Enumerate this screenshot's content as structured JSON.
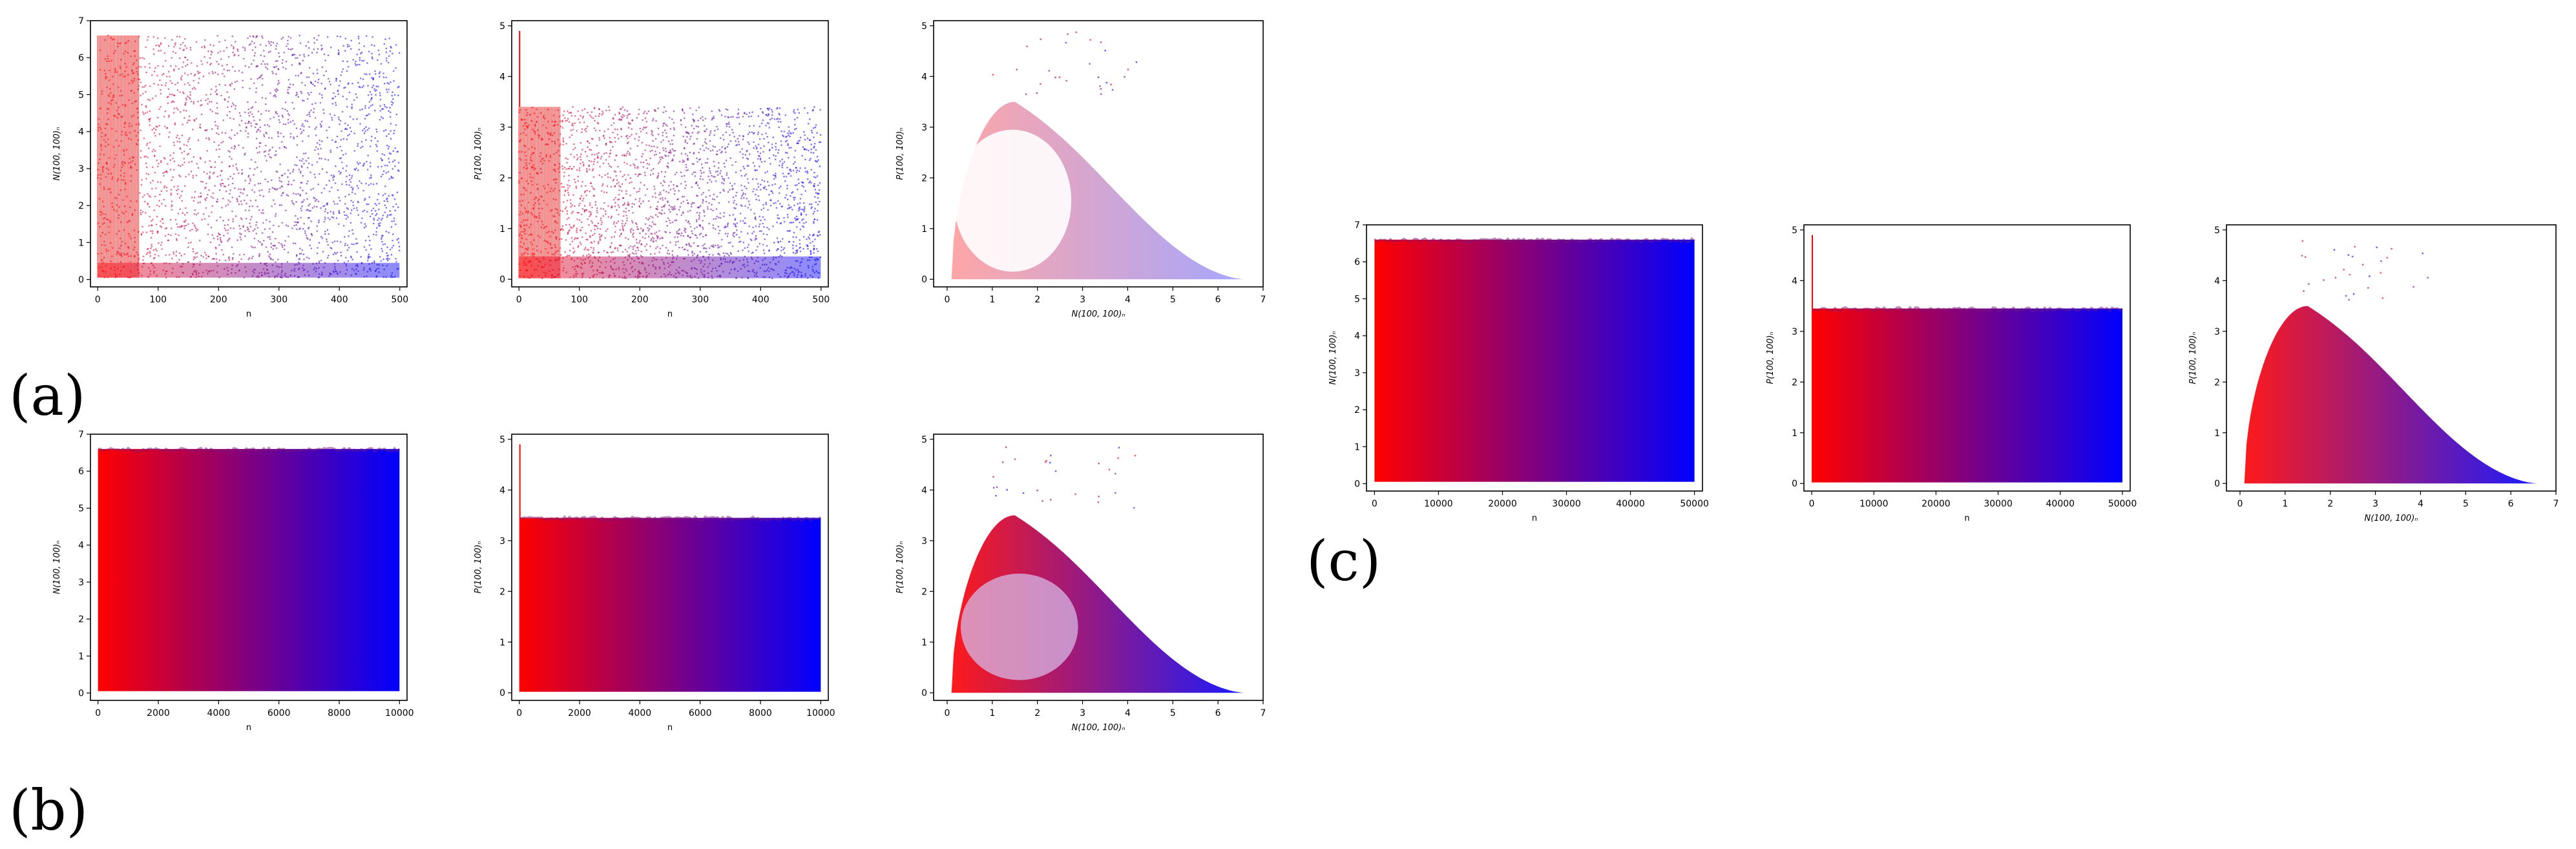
{
  "panel_labels": [
    "(a)",
    "(b)",
    "(c)"
  ],
  "colors": {
    "start": "#ff0000",
    "end": "#0000ff",
    "axis": "#000000"
  },
  "chart_data": [
    {
      "id": "a1",
      "type": "scatter",
      "panel": "(a)",
      "xlabel": "n",
      "ylabel": "N(100, 100)ₙ",
      "xlim": [
        -12,
        512
      ],
      "ylim": [
        -0.2,
        7.0
      ],
      "xticks": [
        0,
        100,
        200,
        300,
        400,
        500
      ],
      "yticks": [
        0,
        1,
        2,
        3,
        4,
        5,
        6,
        7
      ],
      "n_points": 500,
      "y_range": [
        0.05,
        6.6
      ],
      "color_gradient": [
        "#ff0000",
        "#0000ff"
      ]
    },
    {
      "id": "a2",
      "type": "scatter",
      "panel": "(a)",
      "xlabel": "n",
      "ylabel": "P(100, 100)ₙ",
      "xlim": [
        -12,
        512
      ],
      "ylim": [
        -0.15,
        5.1
      ],
      "xticks": [
        0,
        100,
        200,
        300,
        400,
        500
      ],
      "yticks": [
        0,
        1,
        2,
        3,
        4,
        5
      ],
      "n_points": 500,
      "y_range": [
        0.02,
        3.4
      ],
      "spike_at_start": 4.9,
      "color_gradient": [
        "#ff0000",
        "#0000ff"
      ]
    },
    {
      "id": "a3",
      "type": "scatter",
      "panel": "(a)",
      "xlabel": "N(100, 100)ₙ",
      "ylabel": "P(100, 100)ₙ",
      "xlim": [
        -0.3,
        7.0
      ],
      "ylim": [
        -0.15,
        5.1
      ],
      "xticks": [
        0,
        1,
        2,
        3,
        4,
        5,
        6,
        7
      ],
      "yticks": [
        0,
        1,
        2,
        3,
        4,
        5
      ],
      "n_points": 500,
      "shape": "cusp loop, peak P≈3.4 at N≈1.3, tail to N≈6.6",
      "color_gradient": [
        "#ff0000",
        "#0000ff"
      ]
    },
    {
      "id": "b1",
      "type": "scatter",
      "panel": "(b)",
      "xlabel": "n",
      "ylabel": "N(100, 100)ₙ",
      "xlim": [
        -250,
        10250
      ],
      "ylim": [
        -0.2,
        7.0
      ],
      "xticks": [
        0,
        2000,
        4000,
        6000,
        8000,
        10000
      ],
      "yticks": [
        0,
        1,
        2,
        3,
        4,
        5,
        6,
        7
      ],
      "n_points": 10000,
      "y_range": [
        0.05,
        6.6
      ],
      "color_gradient": [
        "#ff0000",
        "#0000ff"
      ]
    },
    {
      "id": "b2",
      "type": "scatter",
      "panel": "(b)",
      "xlabel": "n",
      "ylabel": "P(100, 100)ₙ",
      "xlim": [
        -250,
        10250
      ],
      "ylim": [
        -0.15,
        5.1
      ],
      "xticks": [
        0,
        2000,
        4000,
        6000,
        8000,
        10000
      ],
      "yticks": [
        0,
        1,
        2,
        3,
        4,
        5
      ],
      "n_points": 10000,
      "y_range": [
        0.02,
        3.45
      ],
      "spike_at_start": 4.9,
      "color_gradient": [
        "#ff0000",
        "#0000ff"
      ]
    },
    {
      "id": "b3",
      "type": "scatter",
      "panel": "(b)",
      "xlabel": "N(100, 100)ₙ",
      "ylabel": "P(100, 100)ₙ",
      "xlim": [
        -0.3,
        7.0
      ],
      "ylim": [
        -0.15,
        5.1
      ],
      "xticks": [
        0,
        1,
        2,
        3,
        4,
        5,
        6,
        7
      ],
      "yticks": [
        0,
        1,
        2,
        3,
        4,
        5
      ],
      "n_points": 10000,
      "shape": "filled cusp region, peak P≈3.5 at N≈1.5, tail to N≈6.6",
      "color_gradient": [
        "#ff0000",
        "#0000ff"
      ]
    },
    {
      "id": "c1",
      "type": "scatter",
      "panel": "(c)",
      "xlabel": "n",
      "ylabel": "N(100, 100)ₙ",
      "xlim": [
        -1250,
        51250
      ],
      "ylim": [
        -0.2,
        7.0
      ],
      "xticks": [
        0,
        10000,
        20000,
        30000,
        40000,
        50000
      ],
      "yticks": [
        0,
        1,
        2,
        3,
        4,
        5,
        6,
        7
      ],
      "n_points": 50000,
      "y_range": [
        0.05,
        6.6
      ],
      "color_gradient": [
        "#ff0000",
        "#0000ff"
      ]
    },
    {
      "id": "c2",
      "type": "scatter",
      "panel": "(c)",
      "xlabel": "n",
      "ylabel": "P(100, 100)ₙ",
      "xlim": [
        -1250,
        51250
      ],
      "ylim": [
        -0.15,
        5.1
      ],
      "xticks": [
        0,
        10000,
        20000,
        30000,
        40000,
        50000
      ],
      "yticks": [
        0,
        1,
        2,
        3,
        4,
        5
      ],
      "n_points": 50000,
      "y_range": [
        0.02,
        3.45
      ],
      "spike_at_start": 4.9,
      "color_gradient": [
        "#ff0000",
        "#0000ff"
      ]
    },
    {
      "id": "c3",
      "type": "scatter",
      "panel": "(c)",
      "xlabel": "N(100, 100)ₙ",
      "ylabel": "P(100, 100)ₙ",
      "xlim": [
        -0.3,
        7.0
      ],
      "ylim": [
        -0.15,
        5.1
      ],
      "xticks": [
        0,
        1,
        2,
        3,
        4,
        5,
        6,
        7
      ],
      "yticks": [
        0,
        1,
        2,
        3,
        4,
        5
      ],
      "n_points": 50000,
      "shape": "filled cusp region, peak P≈3.5 at N≈1.5, tail to N≈6.6",
      "color_gradient": [
        "#ff0000",
        "#0000ff"
      ]
    }
  ]
}
